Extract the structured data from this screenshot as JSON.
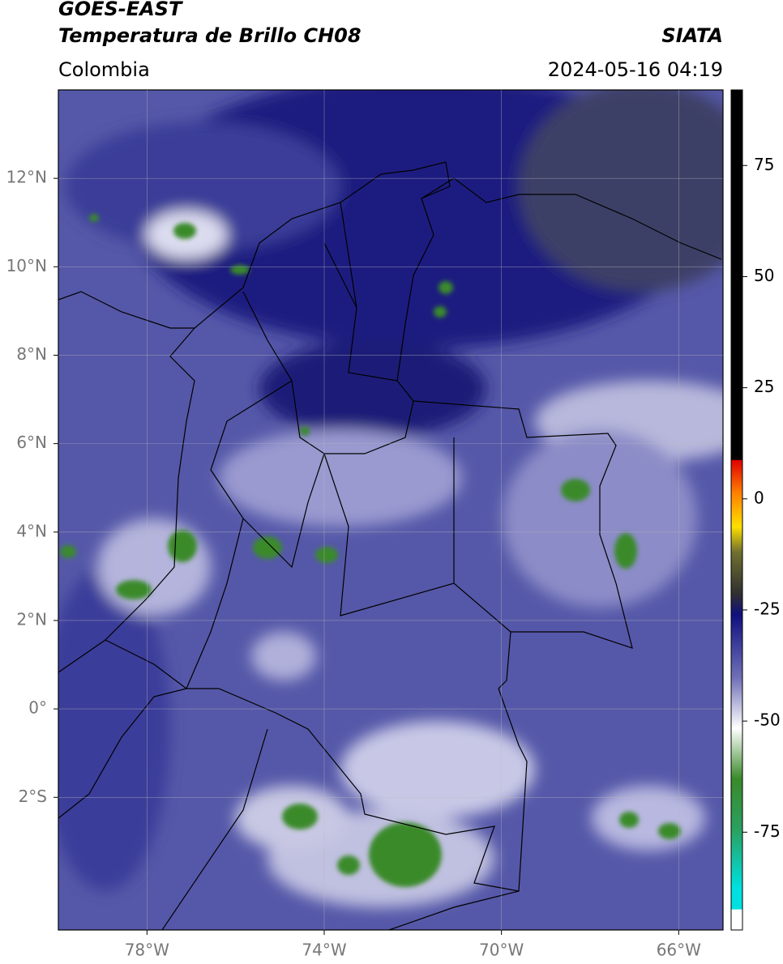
{
  "header": {
    "title": "GOES-EAST",
    "subtitle": "Temperatura de Brillo CH08",
    "region": "Colombia",
    "source": "SIATA",
    "timestamp": "2024-05-16 04:19"
  },
  "map": {
    "xlim": [
      -80,
      -65
    ],
    "ylim": [
      -5,
      14
    ],
    "grid": true,
    "xticks": [
      {
        "value": -78,
        "label": "78°W"
      },
      {
        "value": -74,
        "label": "74°W"
      },
      {
        "value": -70,
        "label": "70°W"
      },
      {
        "value": -66,
        "label": "66°W"
      }
    ],
    "yticks": [
      {
        "value": 12,
        "label": "12°N"
      },
      {
        "value": 10,
        "label": "10°N"
      },
      {
        "value": 8,
        "label": "8°N"
      },
      {
        "value": 6,
        "label": "6°N"
      },
      {
        "value": 4,
        "label": "4°N"
      },
      {
        "value": 2,
        "label": "2°N"
      },
      {
        "value": 0,
        "label": "0°"
      },
      {
        "value": -2,
        "label": "2°S"
      }
    ]
  },
  "colorbar": {
    "lim": [
      -97,
      92
    ],
    "ticks": [
      75,
      50,
      25,
      0,
      -25,
      -50,
      -75
    ]
  }
}
